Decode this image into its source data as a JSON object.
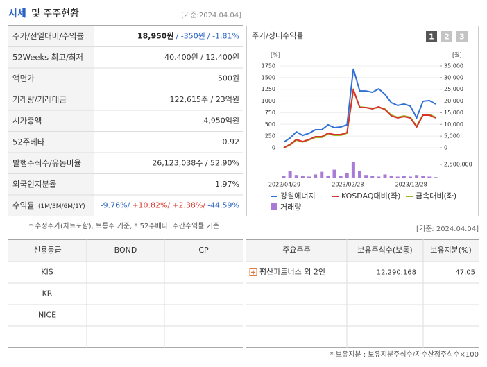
{
  "header": {
    "title_main": "시세",
    "title_rest": "및 주주현황",
    "date": "[기준:2024.04.04]"
  },
  "price_table": {
    "rows": [
      {
        "label": "주가/전일대비/수익률",
        "parts": [
          "18,950원",
          "/ -350원",
          "/ -1.81%"
        ]
      },
      {
        "label": "52Weeks 최고/최저",
        "parts": [
          "40,400원 / 12,400원"
        ]
      },
      {
        "label": "액면가",
        "parts": [
          "500원"
        ]
      },
      {
        "label": "거래량/거래대금",
        "parts": [
          "122,615주 / 23억원"
        ]
      },
      {
        "label": "시가총액",
        "parts": [
          "4,950억원"
        ]
      },
      {
        "label": "52주베타",
        "parts": [
          "0.92"
        ]
      },
      {
        "label": "발행주식수/유동비율",
        "parts": [
          "26,123,038주 / 52.90%"
        ]
      },
      {
        "label": "외국인지분율",
        "parts": [
          "1.97%"
        ]
      },
      {
        "label": "수익률",
        "label_small": "(1M/3M/6M/1Y)",
        "parts": [
          "-9.76%/",
          "+10.82%/",
          "+2.38%/",
          "-44.59%"
        ]
      }
    ]
  },
  "note": "* 수정주가(차트포함), 보통주 기준, * 52주베타: 주간수익률 기준",
  "chart_panel": {
    "title": "주가/상대수익률",
    "tabs": [
      "1",
      "2",
      "3"
    ]
  },
  "chart_data": {
    "type": "line",
    "y_unit": "[%]",
    "y2_unit": "[원]",
    "categories": [
      "2022/04/29",
      null,
      null,
      null,
      null,
      null,
      null,
      null,
      null,
      null,
      null,
      "2023/02/28",
      null,
      null,
      null,
      null,
      null,
      null,
      null,
      null,
      null,
      "2023/12/28",
      null,
      null,
      null
    ],
    "series": [
      {
        "name": "강원에너지",
        "color": "#2f6fd6",
        "axis": "y2",
        "values": [
          2400,
          4200,
          6800,
          5300,
          6200,
          7700,
          7700,
          9800,
          8600,
          8900,
          9800,
          33800,
          24300,
          24300,
          23700,
          25200,
          22800,
          19300,
          18100,
          18700,
          17800,
          12800,
          19900,
          20200,
          18700
        ]
      },
      {
        "name": "KOSDAQ대비(좌)",
        "color": "#d9342b",
        "values": [
          0,
          74,
          178,
          133,
          178,
          237,
          237,
          311,
          282,
          282,
          326,
          1246,
          860,
          860,
          831,
          875,
          816,
          682,
          638,
          667,
          638,
          445,
          697,
          697,
          638
        ]
      },
      {
        "name": "금속대비(좌)",
        "color": "#9ab825",
        "values": [
          0,
          60,
          163,
          125,
          170,
          222,
          222,
          296,
          267,
          267,
          311,
          1230,
          875,
          860,
          845,
          860,
          830,
          697,
          652,
          682,
          652,
          460,
          712,
          712,
          652
        ]
      }
    ],
    "volume": {
      "name": "거래량",
      "color": "#a77bd6",
      "values": [
        400000,
        1200000,
        500000,
        300000,
        200000,
        600000,
        1100000,
        400000,
        1500000,
        300000,
        800000,
        3000000,
        1200000,
        500000,
        300000,
        200000,
        600000,
        400000,
        200000,
        300000,
        200000,
        500000,
        300000,
        200000,
        100000
      ],
      "lim": [
        0,
        2500000
      ],
      "ticks": [
        {
          "value": 2500000,
          "label": "2,500,000"
        }
      ]
    },
    "ylim": [
      0,
      1750
    ],
    "yticks": [
      0,
      250,
      500,
      750,
      1000,
      1250,
      1500,
      1750
    ],
    "y2lim": [
      0,
      35000
    ],
    "y2ticks": [
      0,
      {
        "value": 5000,
        "label": "5,000"
      },
      {
        "value": 10000,
        "label": "10,000"
      },
      {
        "value": 15000,
        "label": "15,000"
      },
      {
        "value": 20000,
        "label": "20,000"
      },
      {
        "value": 25000,
        "label": "25,000"
      },
      {
        "value": 30000,
        "label": "30,000"
      },
      {
        "value": 35000,
        "label": "35,000"
      }
    ],
    "grid": true
  },
  "date2": "[기준: 2024.04.04]",
  "credit_table": {
    "header": [
      "신용등급",
      "BOND",
      "CP"
    ],
    "rows": [
      "KIS",
      "KR",
      "NICE"
    ]
  },
  "holders_table": {
    "header": [
      "주요주주",
      "보유주식수(보통)",
      "보유지분(%)"
    ],
    "rows": [
      [
        "평산파트너스 외 2인",
        "12,290,168",
        "47.05"
      ]
    ]
  },
  "footnote": "* 보유지분 : 보유지분주식수/지수산정주식수×100"
}
